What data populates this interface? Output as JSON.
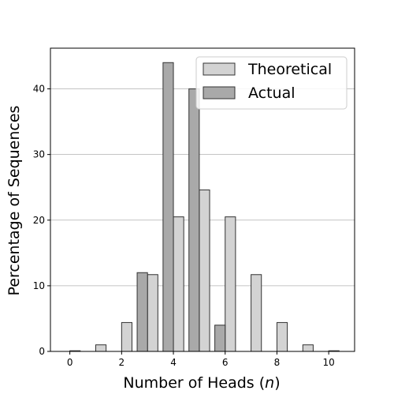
{
  "colors": {
    "theoretical_fill": "#d3d3d3",
    "actual_fill": "#a9a9a9",
    "bar_edge": "#333333",
    "grid": "#b0b0b0",
    "axis": "#000000"
  },
  "chart_data": {
    "type": "bar",
    "xlabel": "Number of Heads (",
    "xlabel_var": "n",
    "xlabel_close": ")",
    "ylabel": "Percentage of Sequences",
    "xlim": [
      -0.75,
      11
    ],
    "ylim": [
      0,
      46.2
    ],
    "xticks": [
      0,
      2,
      4,
      6,
      8,
      10
    ],
    "yticks": [
      0,
      10,
      20,
      30,
      40
    ],
    "grid": "y",
    "legend_position": "upper right",
    "bar_width": 0.4,
    "series": [
      {
        "name": "Theoretical",
        "x": [
          0,
          1,
          2,
          3,
          4,
          5,
          6,
          7,
          8,
          9,
          10
        ],
        "values": [
          0.1,
          1.0,
          4.4,
          11.7,
          20.5,
          24.6,
          20.5,
          11.7,
          4.4,
          1.0,
          0.1
        ],
        "offset": 0.2
      },
      {
        "name": "Actual",
        "x": [
          3,
          4,
          5,
          6
        ],
        "values": [
          12.0,
          44.0,
          40.0,
          4.0
        ],
        "offset": -0.2
      }
    ]
  }
}
